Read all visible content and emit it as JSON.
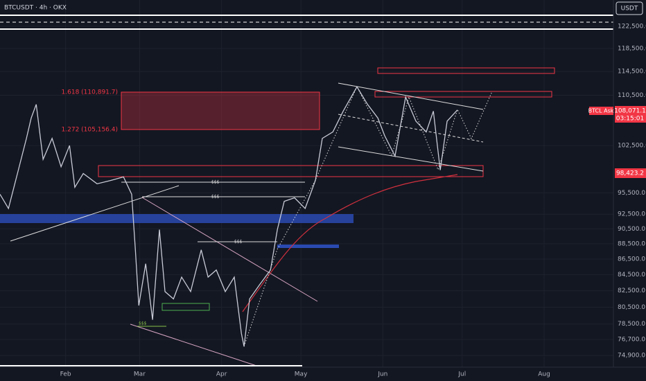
{
  "chart_data": {
    "type": "line",
    "title": "BTCUSDT · 4h · OKX",
    "currency": "USDT",
    "color": "#c9ccd6",
    "log_scale": true,
    "grid": true,
    "x": [
      7.2,
      10.4,
      13.8,
      17.2,
      19.0,
      20.9,
      23.5,
      26.9,
      30.3,
      33.5,
      35.5,
      38.7,
      43.9,
      49.2,
      53.9,
      57.0,
      58.4,
      59.7,
      62.3,
      64.9,
      67.5,
      69.6,
      72.8,
      75.9,
      79.3,
      83.3,
      85.9,
      89.0,
      92.4,
      95.8,
      98.5,
      99.5,
      101.6,
      105.5,
      109.5,
      112.1,
      114.7,
      118.6,
      122.6,
      126.5,
      129.1,
      133.1,
      137.0,
      142.2,
      146.2,
      150.1,
      152.7,
      156.6,
      160.6,
      164.5,
      168.4,
      171.1,
      173.7,
      176.3,
      180.2
    ],
    "values": [
      95300,
      93300,
      98300,
      103600,
      106800,
      109000,
      100400,
      103600,
      99300,
      102500,
      96300,
      98300,
      96800,
      97300,
      97800,
      95300,
      87700,
      80700,
      85900,
      79000,
      90400,
      82400,
      81500,
      84200,
      82400,
      87700,
      84200,
      85100,
      82400,
      84200,
      77400,
      75900,
      81500,
      83300,
      85100,
      90400,
      94300,
      94800,
      93300,
      97300,
      103600,
      104600,
      107900,
      111900,
      109000,
      106800,
      104000,
      100900,
      110200,
      106300,
      104600,
      107900,
      98800,
      106300,
      108100
    ],
    "xlim": [
      7.2,
      239.2
    ],
    "ylim": [
      73600,
      127400
    ],
    "xticks": [
      {
        "value": 32,
        "label": "Feb"
      },
      {
        "value": 60,
        "label": "Mar"
      },
      {
        "value": 91,
        "label": "Apr"
      },
      {
        "value": 121,
        "label": "May"
      },
      {
        "value": 152,
        "label": "Jun"
      },
      {
        "value": 182,
        "label": "Jul"
      },
      {
        "value": 213,
        "label": "Aug"
      }
    ],
    "yticks": [
      {
        "value": 122500,
        "label": "122,500.0"
      },
      {
        "value": 118500,
        "label": "118,500.0"
      },
      {
        "value": 114500,
        "label": "114,500.0"
      },
      {
        "value": 110500,
        "label": "110,500.0"
      },
      {
        "value": 102500,
        "label": "102,500.0"
      },
      {
        "value": 95500,
        "label": "95,500.0"
      },
      {
        "value": 92500,
        "label": "92,500.0"
      },
      {
        "value": 90500,
        "label": "90,500.0"
      },
      {
        "value": 88500,
        "label": "88,500.0"
      },
      {
        "value": 86500,
        "label": "86,500.0"
      },
      {
        "value": 84500,
        "label": "84,500.0"
      },
      {
        "value": 82500,
        "label": "82,500.0"
      },
      {
        "value": 80500,
        "label": "80,500.0"
      },
      {
        "value": 78500,
        "label": "78,500.0"
      },
      {
        "value": 76700,
        "label": "76,700.0"
      },
      {
        "value": 74900,
        "label": "74,900.0"
      }
    ],
    "annotations": {
      "fib_1618": "1.618 (110,891.7)",
      "fib_1272": "1.272 (105,156.4)",
      "liquidity": [
        "$$$",
        "$$$",
        "$$$",
        "$$$"
      ]
    },
    "price_tags": {
      "ask": "BTCL Ask",
      "last": "108,071.1",
      "countdown": "03:15:01",
      "level": "98,423.2"
    }
  }
}
